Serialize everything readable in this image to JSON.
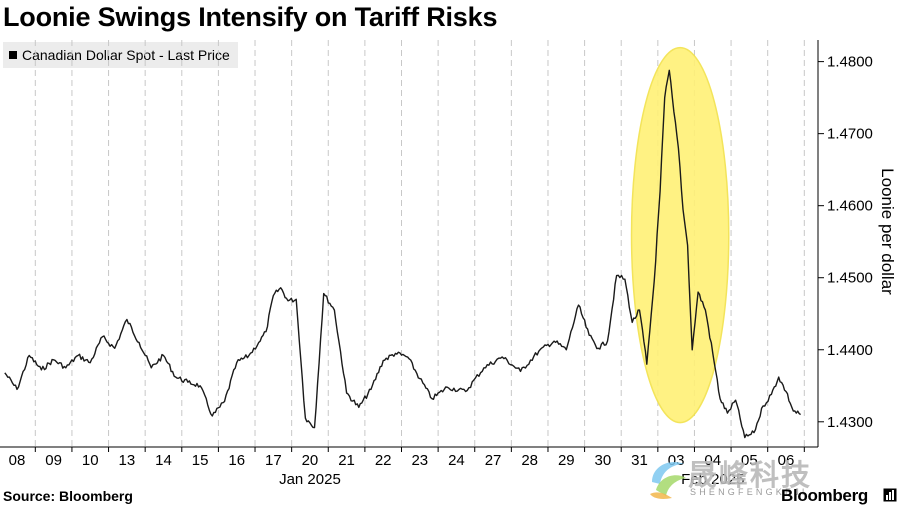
{
  "title": "Loonie Swings Intensify on Tariff Risks",
  "source": "Source: Bloomberg",
  "brand": "Bloomberg",
  "watermark": {
    "text": "晟峰科技",
    "subtext": "SHENGFENGKEJI"
  },
  "colors": {
    "line": "#1a1a1a",
    "highlight_fill": "#fff176",
    "highlight_stroke": "#f2e24a",
    "grid": "#c8c8c8",
    "legend_bg": "#ececec"
  },
  "chart_data": {
    "type": "line",
    "title": "Loonie Swings Intensify on Tariff Risks",
    "legend": [
      "Canadian Dollar Spot - Last Price"
    ],
    "legend_position": "top-left",
    "ylabel": "Loonie per dollar",
    "y_axis_side": "right",
    "ylim": [
      1.4265,
      1.483
    ],
    "y_ticks": [
      "1.4300",
      "1.4400",
      "1.4500",
      "1.4600",
      "1.4700",
      "1.4800"
    ],
    "x_ticks": [
      "08",
      "09",
      "10",
      "13",
      "14",
      "15",
      "16",
      "17",
      "20",
      "21",
      "22",
      "23",
      "24",
      "27",
      "28",
      "29",
      "30",
      "31",
      "03",
      "04",
      "05",
      "06"
    ],
    "x_group_labels": [
      {
        "label": "Jan 2025",
        "under": "20"
      },
      {
        "label": "Feb 2025",
        "under": "04"
      }
    ],
    "grid": "vertical dashed",
    "annotation": {
      "type": "highlight-ellipse",
      "span": [
        "31",
        "04"
      ],
      "y_range": [
        1.431,
        1.48
      ]
    },
    "series": [
      {
        "name": "Canadian Dollar Spot - Last Price",
        "points": [
          [
            "08",
            1.4368
          ],
          [
            "08",
            1.4345
          ],
          [
            "08",
            1.4392
          ],
          [
            "09",
            1.4372
          ],
          [
            "09",
            1.4386
          ],
          [
            "09",
            1.4375
          ],
          [
            "10",
            1.4392
          ],
          [
            "10",
            1.4382
          ],
          [
            "10",
            1.4418
          ],
          [
            "13",
            1.4402
          ],
          [
            "13",
            1.4442
          ],
          [
            "13",
            1.441
          ],
          [
            "14",
            1.4375
          ],
          [
            "14",
            1.4392
          ],
          [
            "14",
            1.4362
          ],
          [
            "15",
            1.4355
          ],
          [
            "15",
            1.435
          ],
          [
            "15",
            1.4308
          ],
          [
            "16",
            1.4328
          ],
          [
            "16",
            1.4382
          ],
          [
            "16",
            1.4392
          ],
          [
            "17",
            1.441
          ],
          [
            "17",
            1.4425
          ],
          [
            "17",
            1.4475
          ],
          [
            "17",
            1.4486
          ],
          [
            "17",
            1.4468
          ],
          [
            "20",
            1.447
          ],
          [
            "20",
            1.4305
          ],
          [
            "20",
            1.4292
          ],
          [
            "20",
            1.4478
          ],
          [
            "21",
            1.4455
          ],
          [
            "21",
            1.434
          ],
          [
            "21",
            1.432
          ],
          [
            "22",
            1.4345
          ],
          [
            "22",
            1.4385
          ],
          [
            "22",
            1.4395
          ],
          [
            "23",
            1.439
          ],
          [
            "23",
            1.436
          ],
          [
            "23",
            1.4332
          ],
          [
            "24",
            1.4348
          ],
          [
            "24",
            1.4342
          ],
          [
            "27",
            1.4375
          ],
          [
            "27",
            1.439
          ],
          [
            "28",
            1.437
          ],
          [
            "28",
            1.4398
          ],
          [
            "29",
            1.4412
          ],
          [
            "29",
            1.44
          ],
          [
            "29",
            1.4462
          ],
          [
            "30",
            1.442
          ],
          [
            "30",
            1.4402
          ],
          [
            "30",
            1.4412
          ],
          [
            "30",
            1.4503
          ],
          [
            "31",
            1.4498
          ],
          [
            "31",
            1.4438
          ],
          [
            "31",
            1.4455
          ],
          [
            "31",
            1.438
          ],
          [
            "31",
            1.4495
          ],
          [
            "03",
            1.462
          ],
          [
            "03",
            1.475
          ],
          [
            "03",
            1.4788
          ],
          [
            "03",
            1.473
          ],
          [
            "03",
            1.468
          ],
          [
            "03",
            1.4595
          ],
          [
            "03",
            1.4545
          ],
          [
            "03",
            1.44
          ],
          [
            "04",
            1.448
          ],
          [
            "04",
            1.4455
          ],
          [
            "04",
            1.4395
          ],
          [
            "04",
            1.4332
          ],
          [
            "04",
            1.4312
          ],
          [
            "05",
            1.433
          ],
          [
            "05",
            1.4278
          ],
          [
            "05",
            1.4285
          ],
          [
            "05",
            1.4322
          ],
          [
            "06",
            1.4338
          ],
          [
            "06",
            1.4362
          ],
          [
            "06",
            1.4342
          ],
          [
            "06",
            1.4315
          ],
          [
            "06",
            1.431
          ]
        ]
      }
    ]
  }
}
